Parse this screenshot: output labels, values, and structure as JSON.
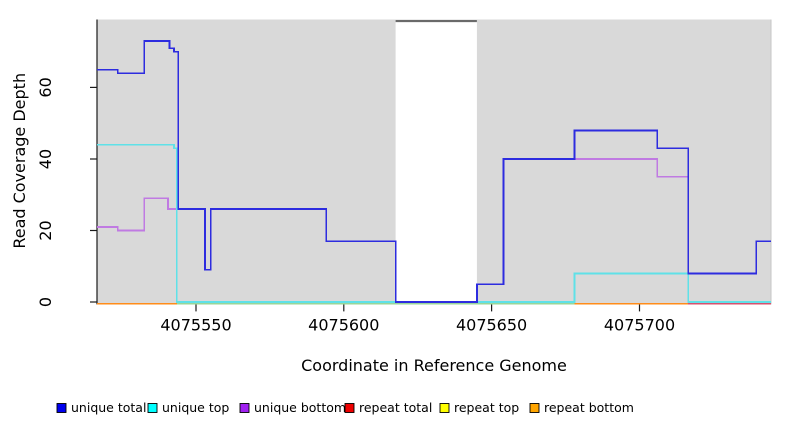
{
  "chart_data": {
    "type": "line",
    "title": "",
    "xlabel": "Coordinate in Reference Genome",
    "ylabel": "Read Coverage Depth",
    "xlim": [
      4075516.5,
      4075744.5
    ],
    "ylim": [
      0,
      79
    ],
    "x_ticks": [
      4075550,
      4075600,
      4075650,
      4075700
    ],
    "x_tick_labels": [
      "4075550",
      "4075600",
      "4075650",
      "4075700"
    ],
    "y_ticks": [
      0,
      20,
      40,
      60
    ],
    "y_tick_labels": [
      "0",
      "20",
      "40",
      "60"
    ],
    "grid": false,
    "legend_position": "bottom",
    "plot_background": "#d9d9d9",
    "gap_band": {
      "start": 4075617.5,
      "end": 4075645,
      "fill": "#ffffff",
      "top_edge_color": "#6a6a6a"
    },
    "series": [
      {
        "name": "unique total",
        "color": "#2d2cdf",
        "legend_color": "#0000ee",
        "steps": [
          [
            4075516.5,
            65
          ],
          [
            4075523.5,
            64
          ],
          [
            4075532.5,
            73
          ],
          [
            4075541,
            71
          ],
          [
            4075542.5,
            70
          ],
          [
            4075544,
            26
          ],
          [
            4075553,
            9
          ],
          [
            4075555,
            26
          ],
          [
            4075594,
            17
          ],
          [
            4075617.5,
            0
          ],
          [
            4075645,
            5
          ],
          [
            4075654,
            40
          ],
          [
            4075678,
            48
          ],
          [
            4075706,
            43
          ],
          [
            4075716.5,
            8
          ],
          [
            4075739.5,
            17
          ],
          [
            4075744.5,
            17
          ]
        ]
      },
      {
        "name": "unique top",
        "color": "#5fe1e8",
        "legend_color": "#00ffff",
        "steps": [
          [
            4075516.5,
            44
          ],
          [
            4075542.5,
            43
          ],
          [
            4075543.5,
            0
          ],
          [
            4075678,
            8
          ],
          [
            4075716.5,
            0
          ],
          [
            4075744.5,
            0
          ]
        ]
      },
      {
        "name": "unique bottom",
        "color": "#c07ae2",
        "legend_color": "#a020f0",
        "steps": [
          [
            4075516.5,
            21
          ],
          [
            4075523.5,
            20
          ],
          [
            4075532.5,
            29
          ],
          [
            4075540.5,
            26
          ],
          [
            4075544,
            26
          ],
          [
            4075553,
            9
          ],
          [
            4075555,
            26
          ],
          [
            4075594,
            17
          ],
          [
            4075617.5,
            0
          ],
          [
            4075645,
            5
          ],
          [
            4075654,
            40
          ],
          [
            4075706,
            35
          ],
          [
            4075716.5,
            0
          ],
          [
            4075744.5,
            0
          ]
        ]
      },
      {
        "name": "repeat total",
        "color": "#d8506e",
        "legend_color": "#ee0000",
        "steps": [
          [
            4075516.5,
            0
          ],
          [
            4075744.5,
            0
          ]
        ]
      },
      {
        "name": "repeat top",
        "color": "#f5f034",
        "legend_color": "#ffff00",
        "steps": [
          [
            4075516.5,
            0
          ],
          [
            4075744.5,
            0
          ]
        ]
      },
      {
        "name": "repeat bottom",
        "color": "#ff8c1a",
        "legend_color": "#ffa500",
        "steps": [
          [
            4075516.5,
            0
          ],
          [
            4075744.5,
            0
          ]
        ]
      }
    ],
    "baseline_segments": [
      {
        "color": "#ff8c1a",
        "from": 4075516.5,
        "to": 4075543.5
      },
      {
        "color": "#99d699",
        "from": 4075543.5,
        "to": 4075678
      },
      {
        "color": "#ff8c1a",
        "from": 4075678,
        "to": 4075716.5
      },
      {
        "color": "#d8506e",
        "from": 4075716.5,
        "to": 4075744.5
      }
    ]
  }
}
